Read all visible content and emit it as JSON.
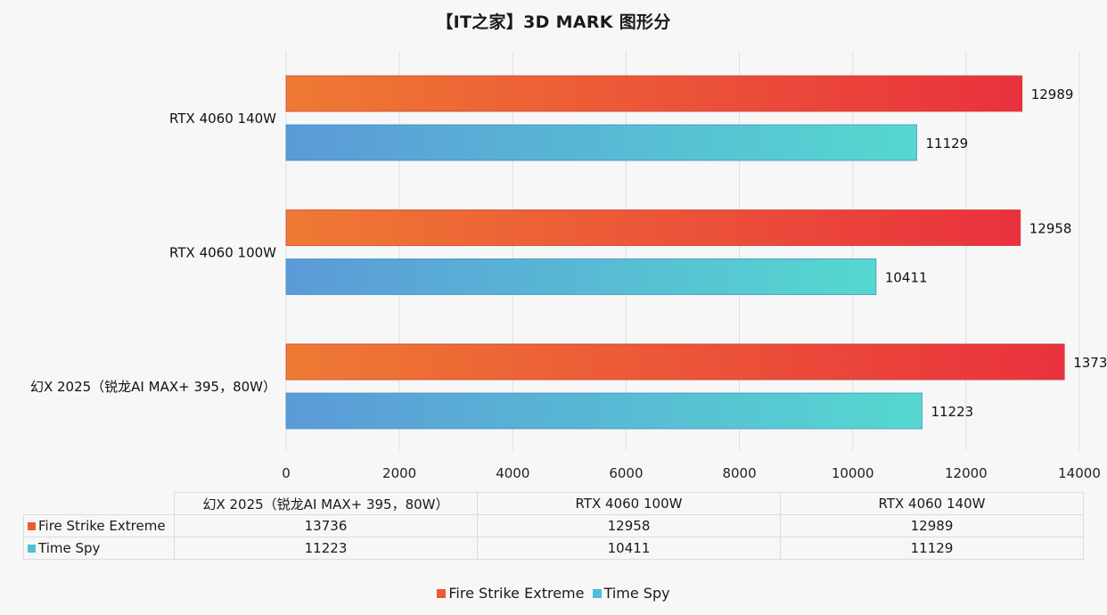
{
  "chart_data": {
    "type": "bar",
    "orientation": "horizontal",
    "title": "【IT之家】3D MARK 图形分",
    "categories": [
      "幻X 2025（锐龙AI MAX+ 395，80W）",
      "RTX 4060 100W",
      "RTX 4060 140W"
    ],
    "series": [
      {
        "name": "Fire Strike Extreme",
        "values": [
          13736,
          12958,
          12989
        ],
        "color_start": "#ee7a33",
        "color_end": "#e9313d"
      },
      {
        "name": "Time Spy",
        "values": [
          11223,
          10411,
          11129
        ],
        "color_start": "#5b9ad8",
        "color_end": "#55d8d0"
      }
    ],
    "x_ticks": [
      "0",
      "2000",
      "4000",
      "6000",
      "8000",
      "10000",
      "12000",
      "14000"
    ],
    "xlim": [
      0,
      14000
    ],
    "grid": true,
    "legend_position": "bottom",
    "data_table": true
  },
  "table": {
    "columns": [
      "幻X 2025（锐龙AI MAX+ 395，80W）",
      "RTX 4060 100W",
      "RTX 4060 140W"
    ],
    "rows": [
      {
        "label": "Fire Strike Extreme",
        "color": "#ec5a32",
        "cells": [
          "13736",
          "12958",
          "12989"
        ]
      },
      {
        "label": "Time Spy",
        "color": "#4dbfd6",
        "cells": [
          "11223",
          "10411",
          "11129"
        ]
      }
    ]
  },
  "legend": {
    "items": [
      {
        "label": "Fire Strike Extreme",
        "color": "#ec5a32"
      },
      {
        "label": "Time Spy",
        "color": "#4dbfd6"
      }
    ]
  }
}
